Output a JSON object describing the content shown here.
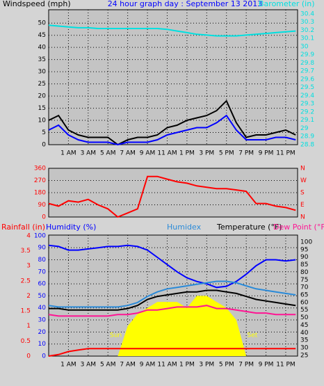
{
  "chart_data": [
    {
      "type": "line",
      "title": "24 hour graph day : September 13 2013",
      "ylabel": "Windspeed (mph)",
      "y2label": "Barometer (in)",
      "x": [
        -1,
        0,
        1,
        2,
        3,
        4,
        5,
        6,
        7,
        8,
        9,
        10,
        11,
        12,
        13,
        14,
        15,
        16,
        17,
        18,
        19,
        20,
        21,
        22,
        23,
        24
      ],
      "xlim": [
        -1,
        24.2
      ],
      "xticks": [
        {
          "value": 1,
          "label": "1 AM"
        },
        {
          "value": 3,
          "label": "3 AM"
        },
        {
          "value": 5,
          "label": "5 AM"
        },
        {
          "value": 7,
          "label": "7 AM"
        },
        {
          "value": 9,
          "label": "9 AM"
        },
        {
          "value": 11,
          "label": "11 AM"
        },
        {
          "value": 13,
          "label": "1 PM"
        },
        {
          "value": 15,
          "label": "3 PM"
        },
        {
          "value": 17,
          "label": "5 PM"
        },
        {
          "value": 19,
          "label": "7 PM"
        },
        {
          "value": 21,
          "label": "9 PM"
        },
        {
          "value": 23,
          "label": "11 PM"
        }
      ],
      "ylim": [
        0,
        55.5
      ],
      "yticks": [
        0,
        5,
        10,
        15,
        20,
        25,
        30,
        35,
        40,
        45,
        50
      ],
      "ycolor": "#000000",
      "y2lim": [
        28.8,
        30.45
      ],
      "y2ticks": [
        28.8,
        28.9,
        29,
        29.1,
        29.2,
        29.3,
        29.4,
        29.5,
        29.6,
        29.7,
        29.8,
        29.9,
        30,
        30.1,
        30.2,
        30.3,
        30.4
      ],
      "y2color": "#00e0e0",
      "grid": true,
      "series": [
        {
          "color": "#000000",
          "values": [
            10,
            12,
            6,
            4,
            3,
            3,
            3,
            0,
            2,
            3,
            3,
            4,
            7,
            8,
            10,
            11,
            12,
            14,
            18,
            9,
            3,
            4,
            4,
            5,
            6,
            4
          ]
        },
        {
          "color": "#0000ff",
          "values": [
            6,
            8,
            4,
            2,
            1,
            1,
            1,
            0,
            1,
            1,
            1,
            2,
            4,
            5,
            6,
            7,
            7,
            9,
            12,
            6,
            2,
            2,
            2,
            3,
            3,
            2
          ]
        },
        {
          "color": "#00e0e0",
          "axis": "y2",
          "values": [
            30.26,
            30.25,
            30.24,
            30.23,
            30.23,
            30.22,
            30.22,
            30.22,
            30.22,
            30.22,
            30.22,
            30.22,
            30.21,
            30.19,
            30.17,
            30.15,
            30.14,
            30.13,
            30.13,
            30.13,
            30.14,
            30.15,
            30.16,
            30.17,
            30.18,
            30.19
          ]
        }
      ]
    },
    {
      "type": "line",
      "x": [
        -1,
        0,
        1,
        2,
        3,
        4,
        5,
        6,
        7,
        8,
        9,
        10,
        11,
        12,
        13,
        14,
        15,
        16,
        17,
        18,
        19,
        20,
        21,
        22,
        23,
        24
      ],
      "xlim": [
        -1,
        24.2
      ],
      "ylim": [
        0,
        360
      ],
      "yticks": [
        0,
        90,
        180,
        270,
        360
      ],
      "ycolor": "#ff0000",
      "y2lim": [
        0,
        360
      ],
      "y2ticks": [
        {
          "value": 0,
          "label": "N"
        },
        {
          "value": 90,
          "label": "E"
        },
        {
          "value": 180,
          "label": "S"
        },
        {
          "value": 270,
          "label": "W"
        },
        {
          "value": 360,
          "label": "N"
        }
      ],
      "y2color": "#ff0000",
      "grid": true,
      "series": [
        {
          "color": "#ff0000",
          "values": [
            100,
            80,
            120,
            110,
            130,
            90,
            60,
            0,
            30,
            60,
            300,
            300,
            280,
            260,
            250,
            230,
            220,
            210,
            210,
            200,
            190,
            100,
            100,
            80,
            70,
            50
          ]
        }
      ]
    },
    {
      "type": "line",
      "annotations": [
        "Sun",
        "Set"
      ],
      "x": [
        -1,
        0,
        1,
        2,
        3,
        4,
        5,
        6,
        7,
        8,
        9,
        10,
        11,
        12,
        13,
        14,
        15,
        16,
        17,
        18,
        19,
        20,
        21,
        22,
        23,
        24
      ],
      "xlim": [
        -1,
        24.2
      ],
      "xticks": [
        {
          "value": 1,
          "label": "1 AM"
        },
        {
          "value": 3,
          "label": "3 AM"
        },
        {
          "value": 5,
          "label": "5 AM"
        },
        {
          "value": 7,
          "label": "7 AM"
        },
        {
          "value": 9,
          "label": "9 AM"
        },
        {
          "value": 11,
          "label": "11 AM"
        },
        {
          "value": 13,
          "label": "1 PM"
        },
        {
          "value": 15,
          "label": "3 PM"
        },
        {
          "value": 17,
          "label": "5 PM"
        },
        {
          "value": 19,
          "label": "7 PM"
        },
        {
          "value": 21,
          "label": "9 PM"
        },
        {
          "value": 23,
          "label": "11 PM"
        }
      ],
      "ylim": [
        0,
        100.5
      ],
      "yticks": [
        0,
        10,
        20,
        30,
        40,
        50,
        60,
        70,
        80,
        90,
        100
      ],
      "ycolor": "#0000ff",
      "y2lim": [
        24.5,
        104.6
      ],
      "y2ticks": [
        25,
        30,
        35,
        40,
        45,
        50,
        55,
        60,
        65,
        70,
        75,
        80,
        85,
        90,
        95,
        100
      ],
      "y2color": "#000000",
      "y3lim": [
        0,
        4.02
      ],
      "y3ticks": [
        0,
        0.5,
        1,
        1.5,
        2,
        2.5,
        3,
        3.5,
        4
      ],
      "y3color": "#ff0000",
      "grid": true,
      "series": [
        {
          "color": "#ffff00",
          "area": true,
          "values": [
            0,
            0,
            0,
            0,
            0,
            0,
            0,
            0,
            25,
            35,
            40,
            45,
            45,
            45,
            40,
            50,
            50,
            45,
            40,
            30,
            0,
            0,
            0,
            0,
            0,
            0
          ]
        },
        {
          "name": "Rainfall (in)",
          "color": "#ff0000",
          "axis": "y3",
          "values": [
            0,
            0.05,
            0.15,
            0.2,
            0.25,
            0.25,
            0.25,
            0.25,
            0.25,
            0.25,
            0.25,
            0.25,
            0.25,
            0.25,
            0.25,
            0.25,
            0.25,
            0.25,
            0.25,
            0.25,
            0.25,
            0.25,
            0.25,
            0.25,
            0.25,
            0.25
          ]
        },
        {
          "name": "Humidity (%)",
          "color": "#0000ff",
          "values": [
            92,
            91,
            88,
            88,
            89,
            90,
            91,
            91,
            92,
            91,
            88,
            82,
            76,
            70,
            65,
            62,
            60,
            57,
            58,
            62,
            68,
            75,
            80,
            80,
            79,
            80
          ]
        },
        {
          "name": "Humidex",
          "color": "#2a8ad8",
          "axis": "y2",
          "values": [
            58,
            57,
            57,
            57,
            57,
            57,
            57,
            57,
            58,
            60,
            64,
            67,
            69,
            70,
            71,
            72,
            73,
            74,
            74,
            73,
            71,
            69,
            68,
            67,
            66,
            65
          ]
        },
        {
          "name": "Temperature (°F)",
          "color": "#000000",
          "axis": "y2",
          "values": [
            56,
            56,
            55,
            55,
            55,
            55,
            55,
            55,
            56,
            58,
            62,
            64,
            65,
            66,
            67,
            67,
            68,
            68,
            67,
            66,
            64,
            62,
            61,
            60,
            59,
            58
          ]
        },
        {
          "name": "Dew Point (°F)",
          "color": "#ff1493",
          "axis": "y2",
          "values": [
            52,
            51,
            51,
            51,
            51,
            51,
            51,
            52,
            52,
            53,
            55,
            55,
            56,
            57,
            57,
            57,
            58,
            56,
            56,
            55,
            54,
            53,
            53,
            52,
            52,
            52
          ]
        }
      ]
    }
  ]
}
